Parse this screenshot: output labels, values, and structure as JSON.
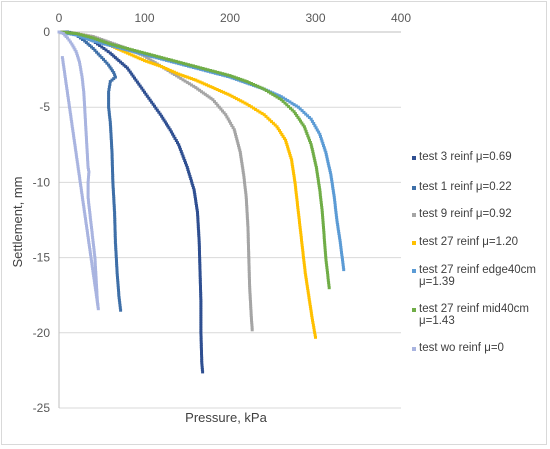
{
  "chart_data": {
    "type": "scatter",
    "title": "",
    "xlabel": "Pressure, kPa",
    "ylabel": "Settlement, mm",
    "xlim": [
      0,
      400
    ],
    "ylim": [
      -25,
      0
    ],
    "x_ticks": [
      "0",
      "100",
      "200",
      "300",
      "400"
    ],
    "y_ticks": [
      "0",
      "-5",
      "-10",
      "-15",
      "-20",
      "-25"
    ],
    "grid": "horizontal",
    "legend_position": "right",
    "series": [
      {
        "name": "test 3 reinf μ=0.69",
        "color": "#2F4F91",
        "points": [
          [
            0,
            0
          ],
          [
            10,
            0
          ],
          [
            20,
            -0.1
          ],
          [
            30,
            -0.3
          ],
          [
            40,
            -0.6
          ],
          [
            50,
            -1.0
          ],
          [
            60,
            -1.4
          ],
          [
            70,
            -1.9
          ],
          [
            80,
            -2.4
          ],
          [
            90,
            -3.2
          ],
          [
            100,
            -4.0
          ],
          [
            110,
            -4.8
          ],
          [
            120,
            -5.6
          ],
          [
            130,
            -6.5
          ],
          [
            140,
            -7.5
          ],
          [
            150,
            -9.0
          ],
          [
            158,
            -10.5
          ],
          [
            162,
            -12.0
          ],
          [
            164,
            -14.0
          ],
          [
            165,
            -16.0
          ],
          [
            166,
            -18.0
          ],
          [
            166,
            -20.0
          ],
          [
            167,
            -22.0
          ],
          [
            168,
            -22.6
          ]
        ]
      },
      {
        "name": "test 1 reinf μ=0.22",
        "color": "#3E6FA8",
        "points": [
          [
            0,
            0
          ],
          [
            10,
            0
          ],
          [
            20,
            -0.2
          ],
          [
            30,
            -0.6
          ],
          [
            40,
            -1.1
          ],
          [
            50,
            -1.7
          ],
          [
            58,
            -2.2
          ],
          [
            64,
            -2.7
          ],
          [
            66,
            -3.0
          ],
          [
            60,
            -3.3
          ],
          [
            58,
            -4.0
          ],
          [
            58,
            -5.0
          ],
          [
            60,
            -6.0
          ],
          [
            62,
            -8.0
          ],
          [
            63,
            -10.0
          ],
          [
            65,
            -12.0
          ],
          [
            66,
            -14.0
          ],
          [
            68,
            -16.0
          ],
          [
            70,
            -17.5
          ],
          [
            72,
            -18.5
          ]
        ]
      },
      {
        "name": "test 9 reinf μ=0.92",
        "color": "#A5A5A5",
        "points": [
          [
            0,
            0
          ],
          [
            20,
            -0.1
          ],
          [
            40,
            -0.3
          ],
          [
            60,
            -0.7
          ],
          [
            80,
            -1.1
          ],
          [
            100,
            -1.6
          ],
          [
            120,
            -2.3
          ],
          [
            140,
            -3.0
          ],
          [
            160,
            -3.7
          ],
          [
            180,
            -4.5
          ],
          [
            195,
            -5.5
          ],
          [
            205,
            -6.5
          ],
          [
            212,
            -8.0
          ],
          [
            216,
            -9.5
          ],
          [
            219,
            -11.0
          ],
          [
            221,
            -13.0
          ],
          [
            222,
            -15.0
          ],
          [
            223,
            -17.0
          ],
          [
            225,
            -19.0
          ],
          [
            226,
            -19.8
          ]
        ]
      },
      {
        "name": "test 27 reinf μ=1.20",
        "color": "#FFC000",
        "points": [
          [
            0,
            0
          ],
          [
            20,
            -0.1
          ],
          [
            40,
            -0.4
          ],
          [
            60,
            -0.9
          ],
          [
            80,
            -1.4
          ],
          [
            100,
            -1.9
          ],
          [
            120,
            -2.3
          ],
          [
            140,
            -2.8
          ],
          [
            160,
            -3.2
          ],
          [
            180,
            -3.7
          ],
          [
            200,
            -4.2
          ],
          [
            220,
            -4.8
          ],
          [
            240,
            -5.5
          ],
          [
            255,
            -6.3
          ],
          [
            265,
            -7.2
          ],
          [
            272,
            -8.5
          ],
          [
            276,
            -10.0
          ],
          [
            279,
            -11.5
          ],
          [
            282,
            -13.0
          ],
          [
            285,
            -14.5
          ],
          [
            288,
            -16.0
          ],
          [
            292,
            -17.5
          ],
          [
            296,
            -19.0
          ],
          [
            300,
            -20.3
          ]
        ]
      },
      {
        "name": "test 27 reinf edge40cm μ=1.39",
        "color": "#5B9BD5",
        "points": [
          [
            0,
            0
          ],
          [
            20,
            -0.2
          ],
          [
            40,
            -0.6
          ],
          [
            60,
            -0.9
          ],
          [
            80,
            -1.2
          ],
          [
            100,
            -1.5
          ],
          [
            120,
            -1.8
          ],
          [
            140,
            -2.1
          ],
          [
            160,
            -2.4
          ],
          [
            180,
            -2.7
          ],
          [
            200,
            -3.0
          ],
          [
            220,
            -3.4
          ],
          [
            240,
            -3.8
          ],
          [
            260,
            -4.3
          ],
          [
            280,
            -5.0
          ],
          [
            295,
            -5.8
          ],
          [
            305,
            -6.8
          ],
          [
            312,
            -8.0
          ],
          [
            318,
            -9.5
          ],
          [
            322,
            -11.0
          ],
          [
            325,
            -12.5
          ],
          [
            329,
            -14.0
          ],
          [
            333,
            -15.8
          ]
        ]
      },
      {
        "name": "test 27 reinf mid40cm μ=1.43",
        "color": "#70AD47",
        "points": [
          [
            0,
            0
          ],
          [
            20,
            -0.1
          ],
          [
            40,
            -0.4
          ],
          [
            60,
            -0.8
          ],
          [
            80,
            -1.1
          ],
          [
            100,
            -1.4
          ],
          [
            120,
            -1.7
          ],
          [
            140,
            -2.0
          ],
          [
            160,
            -2.3
          ],
          [
            180,
            -2.6
          ],
          [
            200,
            -2.9
          ],
          [
            220,
            -3.3
          ],
          [
            240,
            -3.8
          ],
          [
            260,
            -4.5
          ],
          [
            275,
            -5.3
          ],
          [
            287,
            -6.3
          ],
          [
            295,
            -7.5
          ],
          [
            301,
            -9.0
          ],
          [
            305,
            -10.5
          ],
          [
            308,
            -12.0
          ],
          [
            310,
            -13.5
          ],
          [
            312,
            -15.0
          ],
          [
            314,
            -16.0
          ],
          [
            316,
            -17.0
          ]
        ]
      },
      {
        "name": "test wo reinf μ=0",
        "color": "#A9B4E0",
        "points": [
          [
            0,
            0
          ],
          [
            5,
            -0.1
          ],
          [
            10,
            -0.4
          ],
          [
            15,
            -0.8
          ],
          [
            20,
            -1.3
          ],
          [
            24,
            -2.0
          ],
          [
            27,
            -3.0
          ],
          [
            29,
            -4.0
          ],
          [
            30,
            -5.0
          ],
          [
            31,
            -6.0
          ],
          [
            32,
            -7.0
          ],
          [
            33,
            -8.0
          ],
          [
            34,
            -9.0
          ],
          [
            35,
            -9.3
          ],
          [
            34,
            -10.0
          ],
          [
            34,
            -11.0
          ],
          [
            36,
            -12.0
          ],
          [
            38,
            -13.0
          ],
          [
            40,
            -14.0
          ],
          [
            42,
            -15.0
          ],
          [
            43,
            -16.0
          ],
          [
            44,
            -17.0
          ],
          [
            45,
            -18.0
          ],
          [
            46,
            -18.4
          ],
          [
            4,
            -1.7
          ]
        ]
      }
    ]
  }
}
